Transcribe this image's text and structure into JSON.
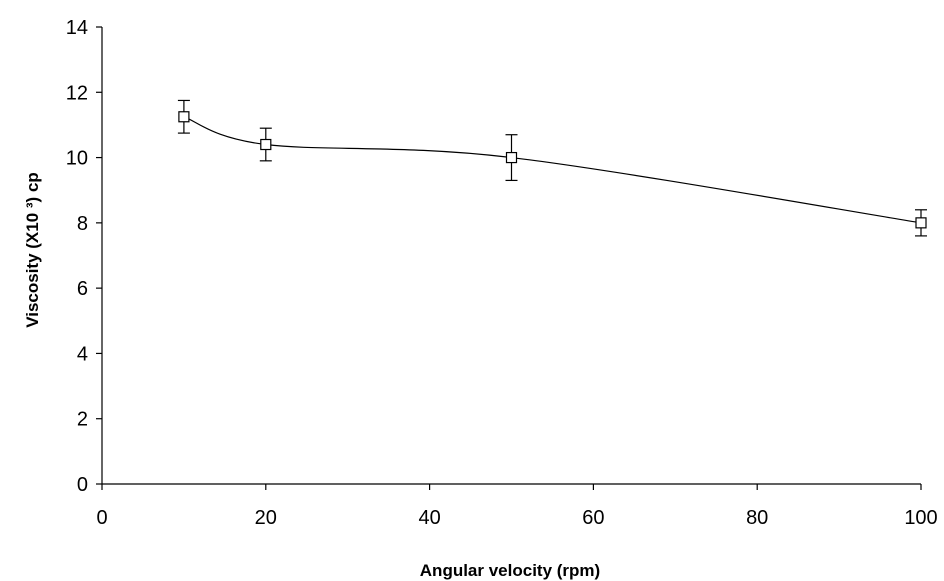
{
  "chart_data": {
    "type": "line",
    "title": "",
    "xlabel": "Angular velocity (rpm)",
    "ylabel": "Viscosity (X10 ³) cp",
    "xlim": [
      0,
      100
    ],
    "ylim": [
      0,
      14
    ],
    "x_ticks": [
      0,
      20,
      40,
      60,
      80,
      100
    ],
    "y_ticks": [
      0,
      2,
      4,
      6,
      8,
      10,
      12,
      14
    ],
    "grid": false,
    "legend": "none",
    "marker": "open-square",
    "line_style": "smoothed",
    "series": [
      {
        "x": [
          10,
          20,
          50,
          100
        ],
        "y": [
          11.25,
          10.4,
          10.0,
          8.0
        ],
        "error": [
          0.5,
          0.5,
          0.7,
          0.4
        ]
      }
    ]
  },
  "colors": {
    "line": "#000000",
    "marker_fill": "#ffffff",
    "axis": "#000000"
  }
}
